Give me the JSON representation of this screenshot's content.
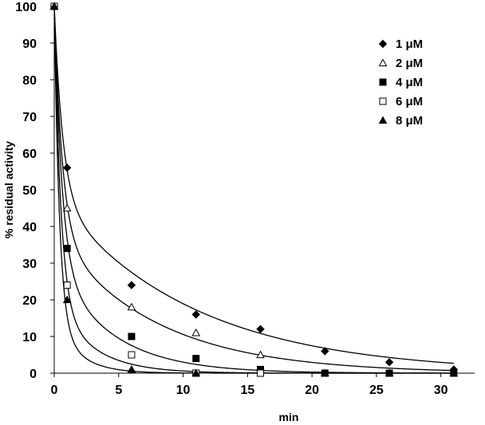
{
  "chart_data": {
    "type": "scatter",
    "title": "",
    "xlabel": "min",
    "ylabel": "% residual activity",
    "xlim": [
      0,
      32
    ],
    "ylim": [
      0,
      100
    ],
    "x_ticks": [
      0,
      5,
      10,
      15,
      20,
      25,
      30
    ],
    "y_ticks": [
      0,
      10,
      20,
      30,
      40,
      50,
      60,
      70,
      80,
      90,
      100
    ],
    "grid": false,
    "legend_position": "top-right",
    "fitted_curves": true,
    "series": [
      {
        "name": "1 μM",
        "marker": "diamond-filled",
        "x": [
          0,
          1,
          6,
          11,
          16,
          21,
          26,
          31
        ],
        "y": [
          100,
          56,
          24,
          16,
          12,
          6,
          3,
          1
        ],
        "fit": {
          "a1": 52,
          "k1": 1.5,
          "a2": 48,
          "k2": 0.093
        }
      },
      {
        "name": "2 μM",
        "marker": "triangle-open",
        "x": [
          0,
          1,
          6,
          11,
          16,
          21,
          26,
          31
        ],
        "y": [
          100,
          45,
          18,
          11,
          5,
          0,
          0,
          0
        ],
        "fit": {
          "a1": 62,
          "k1": 1.6,
          "a2": 38,
          "k2": 0.128
        }
      },
      {
        "name": "4 μM",
        "marker": "square-filled",
        "x": [
          0,
          1,
          6,
          11,
          16,
          21,
          26,
          31
        ],
        "y": [
          100,
          34,
          10,
          4,
          1,
          0,
          0,
          0
        ],
        "fit": {
          "a1": 70,
          "k1": 1.7,
          "a2": 30,
          "k2": 0.23
        }
      },
      {
        "name": "6 μM",
        "marker": "square-open",
        "x": [
          0,
          1,
          6,
          11,
          16
        ],
        "y": [
          100,
          24,
          5,
          0,
          0
        ],
        "fit": {
          "a1": 80,
          "k1": 2.0,
          "a2": 20,
          "k2": 0.35
        }
      },
      {
        "name": "8 μM",
        "marker": "triangle-filled",
        "x": [
          0,
          1,
          6,
          11
        ],
        "y": [
          100,
          20,
          1,
          0
        ],
        "fit": {
          "a1": 85,
          "k1": 2.5,
          "a2": 15,
          "k2": 0.55
        }
      }
    ]
  }
}
